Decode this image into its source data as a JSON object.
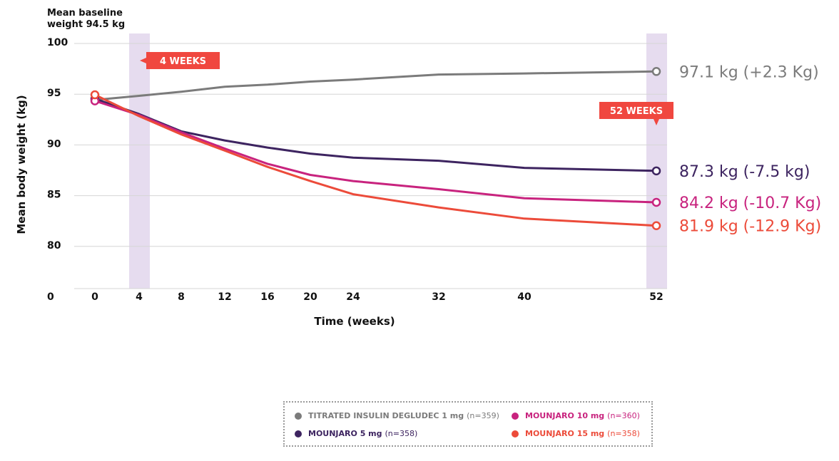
{
  "chart_data": {
    "type": "line",
    "title": "Mean baseline weight 94.5 kg",
    "xlabel": "Time (weeks)",
    "ylabel": "Mean body weight (kg)",
    "x_ticks": [
      0,
      4,
      8,
      12,
      16,
      20,
      24,
      32,
      40,
      52
    ],
    "y_ticks": [
      100,
      95,
      90,
      85,
      80
    ],
    "y_zero_label": "0",
    "xlim": [
      0,
      52
    ],
    "ylim": [
      75,
      100
    ],
    "grid": "horizontal",
    "highlights": [
      {
        "label": "4 WEEKS",
        "x": 4
      },
      {
        "label": "52 WEEKS",
        "x": 52
      }
    ],
    "series": [
      {
        "name": "TITRATED INSULIN DEGLUDEC 1 mg",
        "n": "(n=359)",
        "color": "#7b7b7b",
        "x": [
          0,
          4,
          8,
          12,
          16,
          20,
          24,
          32,
          40,
          52
        ],
        "values": [
          94.3,
          94.7,
          95.1,
          95.6,
          95.8,
          96.1,
          96.3,
          96.8,
          96.9,
          97.1
        ],
        "end_label": "97.1 kg (+2.3 Kg)"
      },
      {
        "name": "MOUNJARO 5 mg",
        "n": "(n=358)",
        "color": "#3d2460",
        "x": [
          0,
          4,
          8,
          12,
          16,
          20,
          24,
          32,
          40,
          52
        ],
        "values": [
          94.4,
          92.9,
          91.2,
          90.3,
          89.6,
          89.0,
          88.6,
          88.3,
          87.6,
          87.3
        ],
        "end_label": "87.3 kg (-7.5 kg)"
      },
      {
        "name": "MOUNJARO 10 mg",
        "n": "(n=360)",
        "color": "#c8237e",
        "x": [
          0,
          4,
          8,
          12,
          16,
          20,
          24,
          32,
          40,
          52
        ],
        "values": [
          94.2,
          92.8,
          91.1,
          89.5,
          88.0,
          86.9,
          86.3,
          85.5,
          84.6,
          84.2
        ],
        "end_label": "84.2 kg (-10.7 Kg)"
      },
      {
        "name": "MOUNJARO 15 mg",
        "n": "(n=358)",
        "color": "#ec4b3a",
        "x": [
          0,
          4,
          8,
          12,
          16,
          20,
          24,
          32,
          40,
          52
        ],
        "values": [
          94.8,
          92.7,
          90.9,
          89.3,
          87.7,
          86.3,
          85.0,
          83.7,
          82.6,
          81.9
        ],
        "end_label": "81.9 kg (-12.9 Kg)"
      }
    ]
  }
}
